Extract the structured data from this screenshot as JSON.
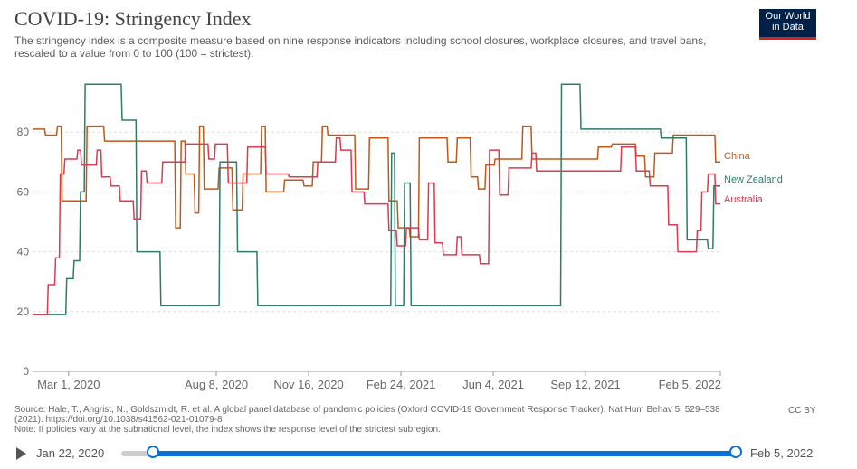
{
  "header": {
    "title": "COVID-19: Stringency Index",
    "subtitle": "The stringency index is a composite measure based on nine response indicators including school closures, workplace closures, and travel bans, rescaled to a value from 0 to 100 (100 = strictest).",
    "logo_line1": "Our World",
    "logo_line2": "in Data"
  },
  "footer": {
    "source": "Source: Hale, T., Angrist, N., Goldszmidt, R. et al. A global panel database of pandemic policies (Oxford COVID-19 Government Response Tracker). Nat Hum Behav 5, 529–538 (2021). https://doi.org/10.1038/s41562-021-01079-8",
    "note": "Note: If policies vary at the subnational level, the index shows the response level of the strictest subregion.",
    "license": "CC BY"
  },
  "timeline": {
    "start_label": "Jan 22, 2020",
    "end_label": "Feb 5, 2022"
  },
  "chart_data": {
    "type": "line",
    "title": "COVID-19: Stringency Index",
    "xlabel": "",
    "ylabel": "",
    "ylim": [
      0,
      100
    ],
    "xlim": [
      "2020-01-22",
      "2022-02-05"
    ],
    "y_ticks": [
      0,
      20,
      40,
      60,
      80
    ],
    "x_ticks": [
      {
        "date": "2020-03-01",
        "label": "Mar 1, 2020"
      },
      {
        "date": "2020-08-08",
        "label": "Aug 8, 2020"
      },
      {
        "date": "2020-11-16",
        "label": "Nov 16, 2020"
      },
      {
        "date": "2021-02-24",
        "label": "Feb 24, 2021"
      },
      {
        "date": "2021-06-04",
        "label": "Jun 4, 2021"
      },
      {
        "date": "2021-09-12",
        "label": "Sep 12, 2021"
      },
      {
        "date": "2022-02-05",
        "label": "Feb 5, 2022"
      }
    ],
    "grid": true,
    "legend": "right (labels at line ends)",
    "series": [
      {
        "name": "China",
        "color": "#c05917",
        "points": [
          [
            "2020-01-22",
            81
          ],
          [
            "2020-02-04",
            81
          ],
          [
            "2020-02-05",
            79
          ],
          [
            "2020-02-17",
            79
          ],
          [
            "2020-02-18",
            82
          ],
          [
            "2020-02-22",
            82
          ],
          [
            "2020-02-23",
            57
          ],
          [
            "2020-03-20",
            57
          ],
          [
            "2020-03-21",
            82
          ],
          [
            "2020-04-08",
            82
          ],
          [
            "2020-04-09",
            77
          ],
          [
            "2020-06-24",
            77
          ],
          [
            "2020-06-25",
            48
          ],
          [
            "2020-06-30",
            48
          ],
          [
            "2020-07-01",
            77
          ],
          [
            "2020-07-05",
            77
          ],
          [
            "2020-07-06",
            66
          ],
          [
            "2020-07-15",
            66
          ],
          [
            "2020-07-16",
            53
          ],
          [
            "2020-07-20",
            53
          ],
          [
            "2020-07-21",
            82
          ],
          [
            "2020-07-25",
            82
          ],
          [
            "2020-07-26",
            61
          ],
          [
            "2020-08-10",
            61
          ],
          [
            "2020-08-11",
            68
          ],
          [
            "2020-08-25",
            68
          ],
          [
            "2020-08-26",
            54
          ],
          [
            "2020-09-05",
            54
          ],
          [
            "2020-09-06",
            66
          ],
          [
            "2020-09-25",
            66
          ],
          [
            "2020-09-26",
            82
          ],
          [
            "2020-09-30",
            82
          ],
          [
            "2020-10-01",
            60
          ],
          [
            "2020-10-20",
            60
          ],
          [
            "2020-10-21",
            64
          ],
          [
            "2020-11-10",
            64
          ],
          [
            "2020-11-11",
            62
          ],
          [
            "2020-11-20",
            62
          ],
          [
            "2020-11-21",
            70
          ],
          [
            "2020-11-30",
            70
          ],
          [
            "2020-12-01",
            82
          ],
          [
            "2020-12-06",
            82
          ],
          [
            "2020-12-07",
            79
          ],
          [
            "2021-01-05",
            79
          ],
          [
            "2021-01-06",
            61
          ],
          [
            "2021-01-20",
            61
          ],
          [
            "2021-01-21",
            78
          ],
          [
            "2021-02-10",
            78
          ],
          [
            "2021-02-11",
            57
          ],
          [
            "2021-02-20",
            57
          ],
          [
            "2021-02-21",
            48
          ],
          [
            "2021-03-05",
            48
          ],
          [
            "2021-03-06",
            45
          ],
          [
            "2021-03-15",
            45
          ],
          [
            "2021-03-16",
            78
          ],
          [
            "2021-04-15",
            78
          ],
          [
            "2021-04-16",
            70
          ],
          [
            "2021-04-25",
            70
          ],
          [
            "2021-04-26",
            78
          ],
          [
            "2021-05-10",
            78
          ],
          [
            "2021-05-11",
            65
          ],
          [
            "2021-05-18",
            65
          ],
          [
            "2021-05-19",
            61
          ],
          [
            "2021-05-26",
            61
          ],
          [
            "2021-05-27",
            69
          ],
          [
            "2021-06-05",
            69
          ],
          [
            "2021-06-06",
            71
          ],
          [
            "2021-07-05",
            71
          ],
          [
            "2021-07-06",
            82
          ],
          [
            "2021-07-15",
            82
          ],
          [
            "2021-07-16",
            71
          ],
          [
            "2021-09-01",
            71
          ],
          [
            "2021-09-02",
            71
          ],
          [
            "2021-09-25",
            71
          ],
          [
            "2021-09-26",
            75
          ],
          [
            "2021-10-10",
            75
          ],
          [
            "2021-10-11",
            76
          ],
          [
            "2021-11-05",
            76
          ],
          [
            "2021-11-06",
            72
          ],
          [
            "2021-11-15",
            72
          ],
          [
            "2021-11-16",
            65
          ],
          [
            "2021-11-25",
            65
          ],
          [
            "2021-11-26",
            73
          ],
          [
            "2021-12-15",
            73
          ],
          [
            "2021-12-16",
            79
          ],
          [
            "2022-01-30",
            79
          ],
          [
            "2022-01-31",
            70
          ],
          [
            "2022-02-05",
            70
          ]
        ]
      },
      {
        "name": "New Zealand",
        "color": "#2d7c6a",
        "points": [
          [
            "2020-01-22",
            19
          ],
          [
            "2020-02-27",
            19
          ],
          [
            "2020-02-28",
            31
          ],
          [
            "2020-03-06",
            31
          ],
          [
            "2020-03-07",
            37
          ],
          [
            "2020-03-13",
            37
          ],
          [
            "2020-03-14",
            60
          ],
          [
            "2020-03-18",
            60
          ],
          [
            "2020-03-19",
            96
          ],
          [
            "2020-04-27",
            96
          ],
          [
            "2020-04-28",
            84
          ],
          [
            "2020-05-13",
            84
          ],
          [
            "2020-05-14",
            40
          ],
          [
            "2020-06-08",
            40
          ],
          [
            "2020-06-09",
            22
          ],
          [
            "2020-08-11",
            22
          ],
          [
            "2020-08-12",
            70
          ],
          [
            "2020-08-30",
            70
          ],
          [
            "2020-08-31",
            40
          ],
          [
            "2020-09-21",
            40
          ],
          [
            "2020-09-22",
            22
          ],
          [
            "2021-02-13",
            22
          ],
          [
            "2021-02-14",
            73
          ],
          [
            "2021-02-17",
            73
          ],
          [
            "2021-02-18",
            22
          ],
          [
            "2021-02-27",
            22
          ],
          [
            "2021-02-28",
            63
          ],
          [
            "2021-03-06",
            63
          ],
          [
            "2021-03-07",
            22
          ],
          [
            "2021-08-16",
            22
          ],
          [
            "2021-08-17",
            96
          ],
          [
            "2021-09-06",
            96
          ],
          [
            "2021-09-07",
            81
          ],
          [
            "2021-12-02",
            81
          ],
          [
            "2021-12-03",
            78
          ],
          [
            "2021-12-30",
            78
          ],
          [
            "2021-12-31",
            44
          ],
          [
            "2022-01-22",
            44
          ],
          [
            "2022-01-23",
            41
          ],
          [
            "2022-01-28",
            41
          ],
          [
            "2022-01-29",
            62
          ],
          [
            "2022-02-05",
            62
          ]
        ]
      },
      {
        "name": "Australia",
        "color": "#d73c50",
        "points": [
          [
            "2020-01-22",
            19
          ],
          [
            "2020-02-07",
            19
          ],
          [
            "2020-02-08",
            29
          ],
          [
            "2020-02-15",
            29
          ],
          [
            "2020-02-16",
            38
          ],
          [
            "2020-02-20",
            38
          ],
          [
            "2020-02-21",
            66
          ],
          [
            "2020-02-25",
            66
          ],
          [
            "2020-02-26",
            71
          ],
          [
            "2020-03-10",
            71
          ],
          [
            "2020-03-11",
            74
          ],
          [
            "2020-03-14",
            74
          ],
          [
            "2020-03-15",
            69
          ],
          [
            "2020-03-31",
            69
          ],
          [
            "2020-04-01",
            74
          ],
          [
            "2020-04-05",
            74
          ],
          [
            "2020-04-06",
            65
          ],
          [
            "2020-04-15",
            65
          ],
          [
            "2020-04-16",
            62
          ],
          [
            "2020-04-25",
            62
          ],
          [
            "2020-04-26",
            57
          ],
          [
            "2020-05-10",
            57
          ],
          [
            "2020-05-11",
            51
          ],
          [
            "2020-05-18",
            51
          ],
          [
            "2020-05-19",
            67
          ],
          [
            "2020-05-24",
            67
          ],
          [
            "2020-05-25",
            63
          ],
          [
            "2020-06-10",
            63
          ],
          [
            "2020-06-11",
            70
          ],
          [
            "2020-07-05",
            70
          ],
          [
            "2020-07-06",
            76
          ],
          [
            "2020-07-30",
            76
          ],
          [
            "2020-07-31",
            71
          ],
          [
            "2020-08-06",
            71
          ],
          [
            "2020-08-07",
            76
          ],
          [
            "2020-08-20",
            76
          ],
          [
            "2020-08-21",
            63
          ],
          [
            "2020-09-10",
            63
          ],
          [
            "2020-09-11",
            75
          ],
          [
            "2020-09-30",
            75
          ],
          [
            "2020-10-01",
            66
          ],
          [
            "2020-10-25",
            66
          ],
          [
            "2020-10-26",
            65
          ],
          [
            "2020-11-25",
            65
          ],
          [
            "2020-11-26",
            70
          ],
          [
            "2020-12-15",
            70
          ],
          [
            "2020-12-16",
            78
          ],
          [
            "2020-12-20",
            78
          ],
          [
            "2020-12-21",
            74
          ],
          [
            "2021-01-01",
            74
          ],
          [
            "2021-01-02",
            60
          ],
          [
            "2021-01-15",
            60
          ],
          [
            "2021-01-16",
            56
          ],
          [
            "2021-02-10",
            56
          ],
          [
            "2021-02-11",
            47
          ],
          [
            "2021-02-19",
            47
          ],
          [
            "2021-02-20",
            42
          ],
          [
            "2021-03-01",
            42
          ],
          [
            "2021-03-02",
            48
          ],
          [
            "2021-03-15",
            48
          ],
          [
            "2021-03-16",
            44
          ],
          [
            "2021-03-25",
            44
          ],
          [
            "2021-03-26",
            63
          ],
          [
            "2021-04-01",
            63
          ],
          [
            "2021-04-02",
            43
          ],
          [
            "2021-04-10",
            43
          ],
          [
            "2021-04-11",
            39
          ],
          [
            "2021-04-25",
            39
          ],
          [
            "2021-04-26",
            45
          ],
          [
            "2021-04-30",
            45
          ],
          [
            "2021-05-01",
            39
          ],
          [
            "2021-05-20",
            39
          ],
          [
            "2021-05-21",
            36
          ],
          [
            "2021-05-30",
            36
          ],
          [
            "2021-05-31",
            74
          ],
          [
            "2021-06-10",
            74
          ],
          [
            "2021-06-11",
            59
          ],
          [
            "2021-06-20",
            59
          ],
          [
            "2021-06-21",
            68
          ],
          [
            "2021-07-15",
            68
          ],
          [
            "2021-07-16",
            73
          ],
          [
            "2021-07-20",
            73
          ],
          [
            "2021-07-21",
            67
          ],
          [
            "2021-10-20",
            67
          ],
          [
            "2021-10-21",
            75
          ],
          [
            "2021-11-05",
            75
          ],
          [
            "2021-11-06",
            67
          ],
          [
            "2021-11-20",
            67
          ],
          [
            "2021-11-21",
            62
          ],
          [
            "2021-12-10",
            62
          ],
          [
            "2021-12-11",
            49
          ],
          [
            "2021-12-20",
            49
          ],
          [
            "2021-12-21",
            40
          ],
          [
            "2022-01-10",
            40
          ],
          [
            "2022-01-11",
            47
          ],
          [
            "2022-01-15",
            47
          ],
          [
            "2022-01-16",
            60
          ],
          [
            "2022-01-22",
            60
          ],
          [
            "2022-01-23",
            66
          ],
          [
            "2022-01-30",
            66
          ],
          [
            "2022-01-31",
            56
          ],
          [
            "2022-02-05",
            56
          ]
        ]
      }
    ]
  }
}
